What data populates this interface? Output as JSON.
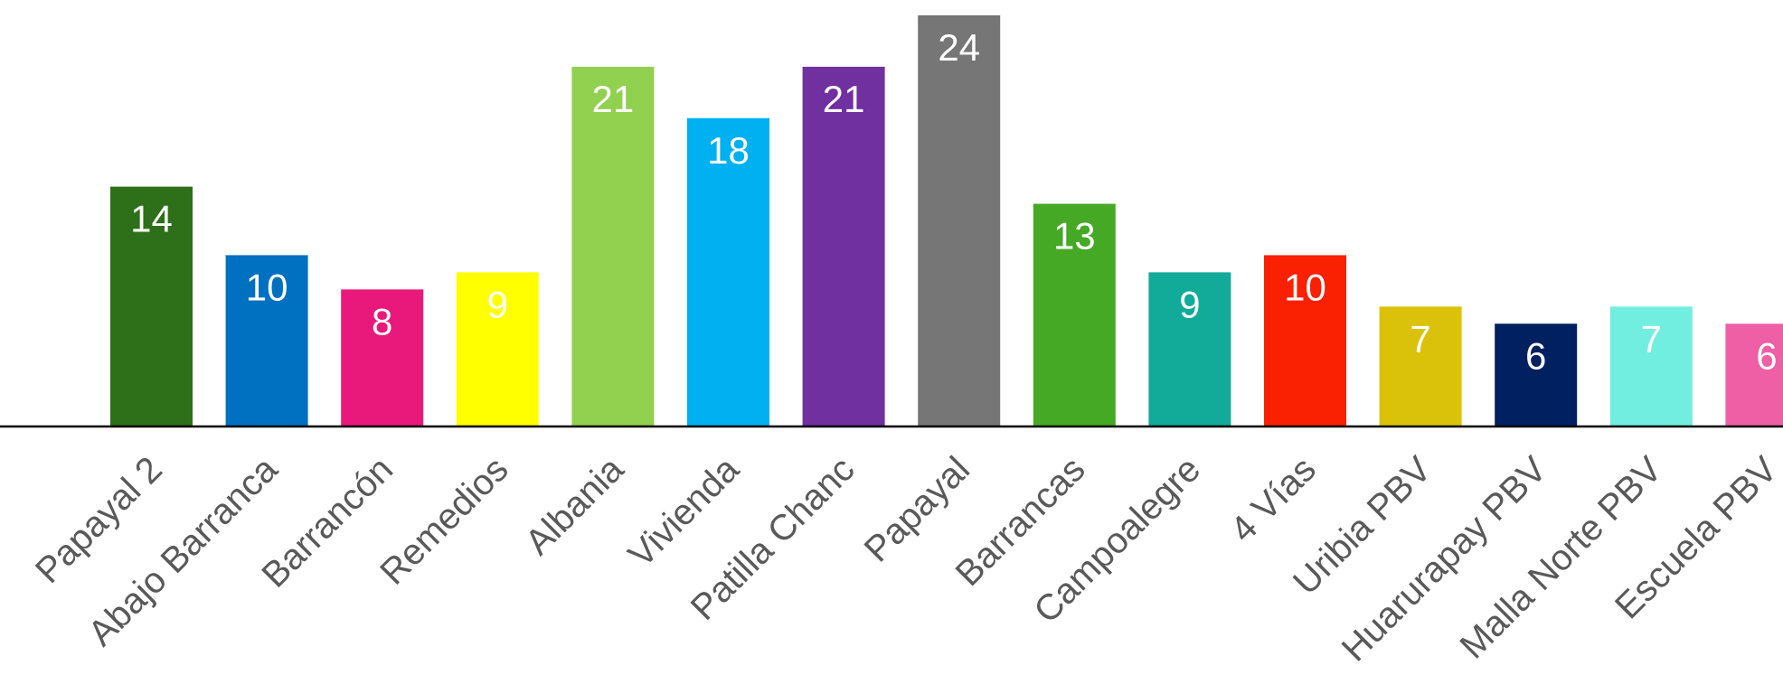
{
  "chart_data": {
    "type": "bar",
    "title": "",
    "xlabel": "",
    "ylabel": "",
    "categories": [
      "Papayal 2",
      "Abajo Barranca",
      "Barrancón",
      "Remedios",
      "Albania",
      "Vivienda",
      "Patilla Chanc",
      "Papayal",
      "Barrancas",
      "Campoalegre",
      "4 Vías",
      "Uribia PBV",
      "Huarurapay PBV",
      "Malla Norte PBV",
      "Escuela PBV"
    ],
    "values": [
      14,
      10,
      8,
      9,
      21,
      18,
      21,
      24,
      13,
      9,
      10,
      7,
      6,
      7,
      6
    ],
    "colors": [
      "#2e7019",
      "#0070c0",
      "#e8197a",
      "#ffff00",
      "#92d050",
      "#00b0f0",
      "#7030a0",
      "#767676",
      "#45a925",
      "#12aa99",
      "#fa2002",
      "#dbc20a",
      "#002060",
      "#72eee0",
      "#ee5fa5"
    ],
    "value_labels": [
      "14",
      "10",
      "8",
      "9",
      "21",
      "18",
      "21",
      "24",
      "13",
      "9",
      "10",
      "7",
      "6",
      "7",
      "6"
    ],
    "ylim": [
      0,
      24
    ],
    "grid": false,
    "legend": "none",
    "data_labels": "inside-end"
  }
}
